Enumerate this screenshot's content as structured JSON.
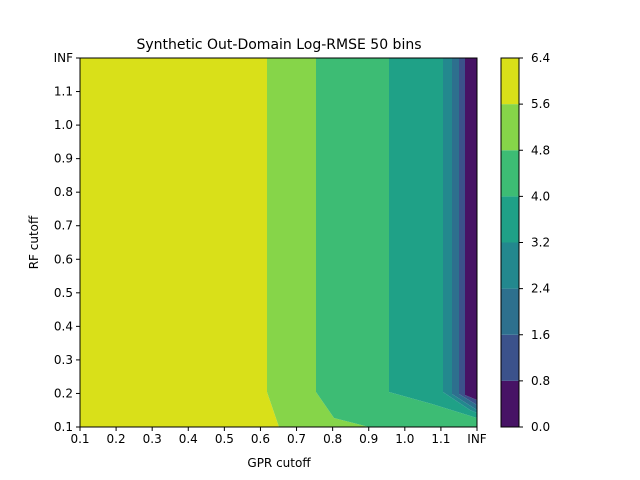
{
  "chart_data": {
    "type": "contourf",
    "title": "Synthetic Out-Domain Log-RMSE 50 bins",
    "xlabel": "GPR cutoff",
    "ylabel": "RF cutoff",
    "x_ticks": [
      "0.1",
      "0.2",
      "0.3",
      "0.4",
      "0.5",
      "0.6",
      "0.7",
      "0.8",
      "0.9",
      "1.0",
      "1.1",
      "INF"
    ],
    "y_ticks": [
      "0.1",
      "0.2",
      "0.3",
      "0.4",
      "0.5",
      "0.6",
      "0.7",
      "0.8",
      "0.9",
      "1.0",
      "1.1",
      "INF"
    ],
    "colorbar": {
      "levels": [
        0.0,
        0.8,
        1.6,
        2.4,
        3.2,
        4.0,
        4.8,
        5.6,
        6.4
      ],
      "tick_labels": [
        "0.0",
        "0.8",
        "1.6",
        "2.4",
        "3.2",
        "4.0",
        "4.8",
        "5.6",
        "6.4"
      ],
      "colors": [
        "#440154",
        "#46327e",
        "#365c8d",
        "#277f8e",
        "#1fa187",
        "#4ac16d",
        "#a0da39",
        "#fde725"
      ],
      "colormap": "viridis"
    },
    "band_colors": {
      "level_5.6_6.4": "#d9e019",
      "level_4.8_5.6": "#86d549",
      "level_4.0_4.8": "#3dbc74",
      "level_3.2_4.0": "#1fa187",
      "level_2.4_3.2": "#23888e",
      "level_1.6_2.4": "#2d708e",
      "level_0.8_1.6": "#3b528b",
      "level_0.0_0.8": "#471365"
    },
    "regions": [
      {
        "level_range": [
          5.6,
          6.4
        ],
        "description": "GPR cutoff 0.1 to about 0.62"
      },
      {
        "level_range": [
          4.8,
          5.6
        ],
        "description": "GPR cutoff about 0.62 to 0.76"
      },
      {
        "level_range": [
          4.0,
          4.8
        ],
        "description": "GPR cutoff about 0.76 to 0.96"
      },
      {
        "level_range": [
          3.2,
          4.0
        ],
        "description": "GPR cutoff about 0.96 to 1.12"
      },
      {
        "level_range": [
          0.0,
          3.2
        ],
        "description": "GPR cutoff near INF, decreasing toward 0"
      }
    ]
  }
}
